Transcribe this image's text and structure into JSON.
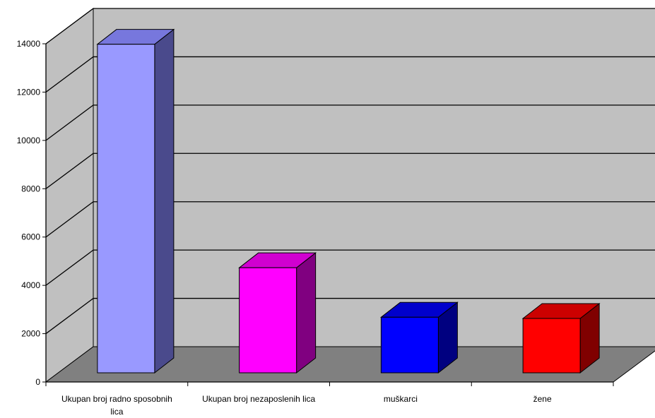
{
  "chart_data": {
    "type": "bar",
    "categories": [
      "Ukupan broj radno sposobnih lica",
      "Ukupan broj nezaposlenih lica",
      "muškarci",
      "žene"
    ],
    "category_label_lines": [
      [
        "Ukupan broj radno sposobnih",
        "lica"
      ],
      [
        "Ukupan broj nezaposlenih lica"
      ],
      [
        "muškarci"
      ],
      [
        "žene"
      ]
    ],
    "values": [
      13600,
      4350,
      2300,
      2250
    ],
    "bar_colors": [
      {
        "front": "#9999ff",
        "side": "#4a4a8c",
        "top": "#7777dd"
      },
      {
        "front": "#ff00ff",
        "side": "#800080",
        "top": "#d000d0"
      },
      {
        "front": "#0000ff",
        "side": "#000080",
        "top": "#0000cc"
      },
      {
        "front": "#ff0000",
        "side": "#800000",
        "top": "#cc0000"
      }
    ],
    "ylim": [
      0,
      14000
    ],
    "y_ticks": [
      0,
      2000,
      4000,
      6000,
      8000,
      10000,
      12000,
      14000
    ],
    "grid": true,
    "wall_color": "#c0c0c0",
    "floor_color": "#808080",
    "title": "",
    "xlabel": "",
    "ylabel": ""
  }
}
